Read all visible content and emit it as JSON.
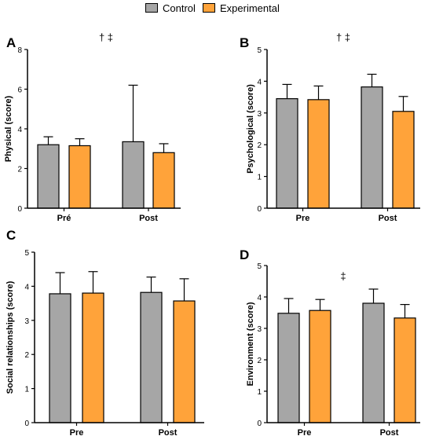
{
  "legend": {
    "items": [
      {
        "label": "Control",
        "color": "#a6a6a6"
      },
      {
        "label": "Experimental",
        "color": "#ffa33a"
      }
    ]
  },
  "chart_data": [
    {
      "panel": "A",
      "type": "bar",
      "annotation": "† ‡",
      "ylabel": "Physical (score)",
      "ylim": [
        0,
        8
      ],
      "yticks": [
        0,
        2,
        4,
        6,
        8
      ],
      "categories": [
        "Pré",
        "Post"
      ],
      "series": [
        {
          "name": "Control",
          "values": [
            3.2,
            3.35
          ],
          "errors": [
            0.4,
            2.85
          ]
        },
        {
          "name": "Experimental",
          "values": [
            3.15,
            2.8
          ],
          "errors": [
            0.35,
            0.45
          ]
        }
      ]
    },
    {
      "panel": "B",
      "type": "bar",
      "annotation": "† ‡",
      "ylabel": "Psychological (score)",
      "ylim": [
        0,
        5
      ],
      "yticks": [
        0,
        1,
        2,
        3,
        4,
        5
      ],
      "categories": [
        "Pre",
        "Post"
      ],
      "series": [
        {
          "name": "Control",
          "values": [
            3.45,
            3.82
          ],
          "errors": [
            0.45,
            0.4
          ]
        },
        {
          "name": "Experimental",
          "values": [
            3.42,
            3.05
          ],
          "errors": [
            0.43,
            0.47
          ]
        }
      ]
    },
    {
      "panel": "C",
      "type": "bar",
      "annotation": "",
      "ylabel": "Social relationships (score)",
      "ylim": [
        0,
        5
      ],
      "yticks": [
        0,
        1,
        2,
        3,
        4,
        5
      ],
      "categories": [
        "Pre",
        "Post"
      ],
      "series": [
        {
          "name": "Control",
          "values": [
            3.78,
            3.82
          ],
          "errors": [
            0.62,
            0.45
          ]
        },
        {
          "name": "Experimental",
          "values": [
            3.8,
            3.57
          ],
          "errors": [
            0.63,
            0.65
          ]
        }
      ]
    },
    {
      "panel": "D",
      "type": "bar",
      "annotation": "‡",
      "ylabel": "Environment (score)",
      "ylim": [
        0,
        5
      ],
      "yticks": [
        0,
        1,
        2,
        3,
        4,
        5
      ],
      "categories": [
        "Pre",
        "Post"
      ],
      "series": [
        {
          "name": "Control",
          "values": [
            3.48,
            3.8
          ],
          "errors": [
            0.47,
            0.45
          ]
        },
        {
          "name": "Experimental",
          "values": [
            3.57,
            3.33
          ],
          "errors": [
            0.35,
            0.43
          ]
        }
      ]
    }
  ]
}
